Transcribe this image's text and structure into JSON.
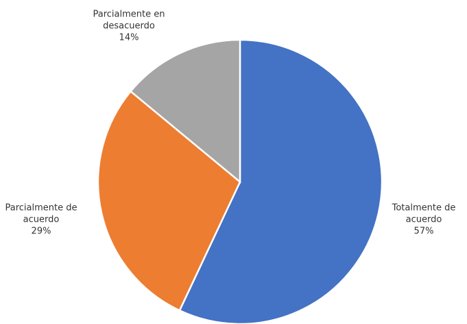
{
  "chart_data": {
    "type": "pie",
    "categories": [
      "Totalmente de acuerdo",
      "Parcialmente de acuerdo",
      "Parcialmente en desacuerdo"
    ],
    "values": [
      57,
      29,
      14
    ],
    "value_labels": [
      "57%",
      "29%",
      "14%"
    ],
    "colors": [
      "#4472c4",
      "#ed7d31",
      "#a5a5a5"
    ]
  }
}
